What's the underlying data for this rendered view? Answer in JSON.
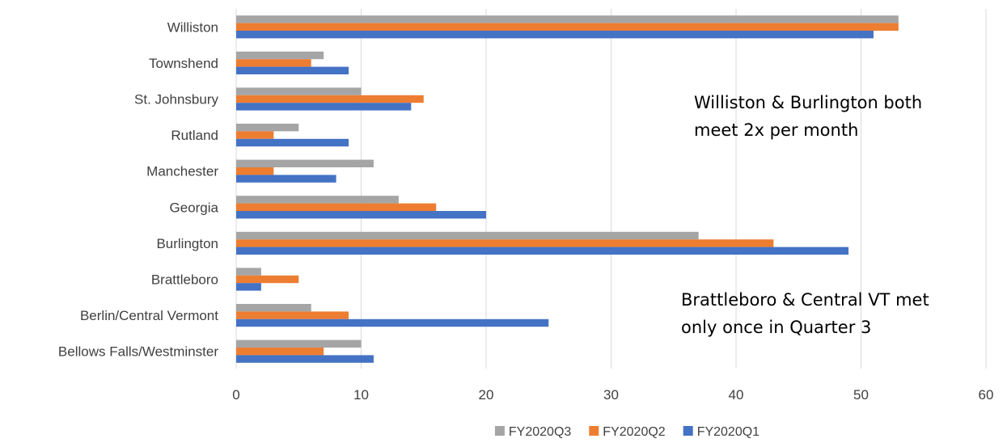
{
  "chart_data": {
    "type": "bar",
    "orientation": "horizontal",
    "categories": [
      "Williston",
      "Townshend",
      "St. Johnsbury",
      "Rutland",
      "Manchester",
      "Georgia",
      "Burlington",
      "Brattleboro",
      "Berlin/Central Vermont",
      "Bellows Falls/Westminster"
    ],
    "series": [
      {
        "name": "FY2020Q3",
        "color": "#a5a5a5",
        "values": [
          53,
          7,
          10,
          5,
          11,
          13,
          37,
          2,
          6,
          10
        ]
      },
      {
        "name": "FY2020Q2",
        "color": "#ed7d31",
        "values": [
          53,
          6,
          15,
          3,
          3,
          16,
          43,
          5,
          9,
          7
        ]
      },
      {
        "name": "FY2020Q1",
        "color": "#4472c4",
        "values": [
          51,
          9,
          14,
          9,
          8,
          20,
          49,
          2,
          25,
          11
        ]
      }
    ],
    "xlim": [
      0,
      60
    ],
    "xticks": [
      0,
      10,
      20,
      30,
      40,
      50,
      60
    ],
    "grid": "vertical",
    "legend_position": "bottom",
    "annotations": [
      {
        "lines": [
          "Williston & Burlington both",
          "meet 2x per month"
        ]
      },
      {
        "lines": [
          "Brattleboro & Central VT met",
          "only once in Quarter 3"
        ]
      }
    ]
  }
}
